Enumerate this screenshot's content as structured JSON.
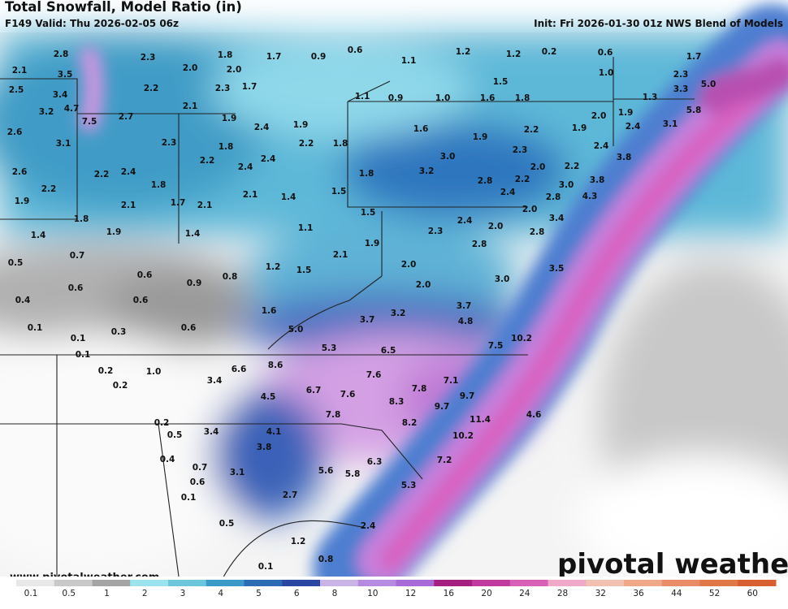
{
  "header": {
    "title": "Total Snowfall, Model Ratio (in)",
    "subtitle": "F149 Valid: Thu 2026-02-05 06z",
    "init": "Init: Fri 2026-01-30 01z NWS Blend of Models"
  },
  "watermark": "www.pivotalweather.com",
  "logo": "pivotal weather",
  "map": {
    "labels": [
      "2.8",
      "2.1",
      "3.5",
      "2.5",
      "3.4",
      "4.7",
      "3.2",
      "7.5",
      "2.7",
      "2.6",
      "3.1",
      "2.3",
      "2.0",
      "1.8",
      "2.0",
      "2.2",
      "2.3",
      "1.7",
      "2.1",
      "1.7",
      "0.9",
      "0.6",
      "1.1",
      "1.2",
      "1.2",
      "0.2",
      "0.6",
      "1.7",
      "1.0",
      "2.3",
      "3.3",
      "5.0",
      "1.5",
      "0.9",
      "1.0",
      "1.6",
      "1.8",
      "1.1",
      "1.3",
      "5.8",
      "1.9",
      "2.4",
      "1.9",
      "1.6",
      "2.0",
      "1.9",
      "2.2",
      "1.9",
      "2.4",
      "3.1",
      "1.9",
      "2.3",
      "1.8",
      "2.2",
      "1.8",
      "2.3",
      "2.4",
      "3.8",
      "2.4",
      "2.6",
      "2.2",
      "2.4",
      "2.2",
      "2.4",
      "3.0",
      "1.8",
      "3.2",
      "2.0",
      "2.2",
      "3.8",
      "2.2",
      "1.8",
      "2.8",
      "2.2",
      "3.0",
      "1.9",
      "2.1",
      "1.7",
      "2.1",
      "2.1",
      "1.4",
      "1.5",
      "2.4",
      "2.8",
      "4.3",
      "1.5",
      "2.4",
      "2.0",
      "2.0",
      "3.4",
      "1.8",
      "1.9",
      "1.4",
      "1.4",
      "1.1",
      "2.3",
      "2.8",
      "1.9",
      "2.8",
      "0.5",
      "0.7",
      "2.1",
      "1.2",
      "1.5",
      "2.0",
      "3.5",
      "0.6",
      "0.8",
      "3.0",
      "0.6",
      "0.9",
      "2.0",
      "0.4",
      "0.6",
      "1.6",
      "3.2",
      "3.7",
      "3.7",
      "4.8",
      "0.1",
      "0.3",
      "0.6",
      "5.0",
      "0.1",
      "5.3",
      "6.5",
      "7.5",
      "10.2",
      "0.1",
      "8.6",
      "6.6",
      "7.6",
      "7.1",
      "0.2",
      "1.0",
      "3.4",
      "0.2",
      "6.7",
      "7.6",
      "7.8",
      "9.7",
      "4.5",
      "8.3",
      "9.7",
      "4.6",
      "11.4",
      "7.8",
      "8.2",
      "0.2",
      "0.5",
      "3.4",
      "4.1",
      "10.2",
      "3.8",
      "0.4",
      "0.7",
      "6.3",
      "7.2",
      "5.6",
      "5.8",
      "3.1",
      "0.6",
      "5.3",
      "0.1",
      "2.7",
      "0.5",
      "2.4",
      "1.2",
      "0.1",
      "0.8"
    ]
  },
  "colorbar": {
    "labels": [
      "0.1",
      "0.5",
      "1",
      "2",
      "3",
      "4",
      "5",
      "6",
      "8",
      "10",
      "12",
      "16",
      "20",
      "24",
      "28",
      "32",
      "36",
      "44",
      "52",
      "60"
    ],
    "colors": [
      "#e8e8e8",
      "#c8c8c8",
      "#a4a4a4",
      "#9be3ee",
      "#6cc6dc",
      "#3d9ac8",
      "#2c6cb4",
      "#2a48a2",
      "#cab3e6",
      "#b58ae0",
      "#a86ad6",
      "#a52080",
      "#c03aa0",
      "#d860b8",
      "#f0a8c8",
      "#f2c0b0",
      "#eea888",
      "#e88c66",
      "#e07848",
      "#d86030"
    ]
  }
}
